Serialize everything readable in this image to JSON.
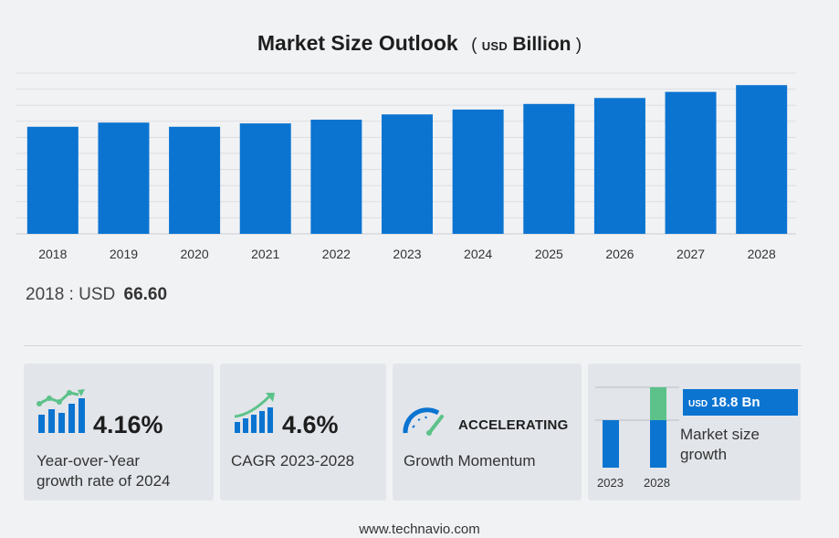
{
  "chart_data": {
    "type": "bar",
    "title": "Market Size Outlook",
    "unit_prefix": "USD",
    "unit_suffix": "Billion",
    "categories": [
      "2018",
      "2019",
      "2020",
      "2021",
      "2022",
      "2023",
      "2024",
      "2025",
      "2026",
      "2027",
      "2028"
    ],
    "values": [
      66.6,
      69.2,
      66.6,
      68.7,
      71.0,
      74.3,
      77.3,
      80.8,
      84.5,
      88.3,
      92.5
    ],
    "ylim": [
      0,
      100
    ],
    "grid": true,
    "bar_color": "#0b74d1"
  },
  "base_value": {
    "label": "2018 : USD",
    "value": "66.60"
  },
  "cards": {
    "yoy": {
      "value": "4.16%",
      "label_line1": "Year-over-Year",
      "label_line2": "growth rate of 2024"
    },
    "cagr": {
      "value": "4.6%",
      "label": "CAGR 2023-2028"
    },
    "momentum": {
      "value": "ACCELERATING",
      "label": "Growth Momentum"
    },
    "market": {
      "badge_unit": "USD",
      "badge_value": "18.8 Bn",
      "label_line1": "Market size",
      "label_line2": "growth",
      "year_start": "2023",
      "year_end": "2028",
      "growth_color": "#5cc28a"
    }
  },
  "footer": "www.technavio.com",
  "colors": {
    "accent": "#0b74d1",
    "green": "#5cc28a",
    "card_bg": "#e2e5ea"
  }
}
